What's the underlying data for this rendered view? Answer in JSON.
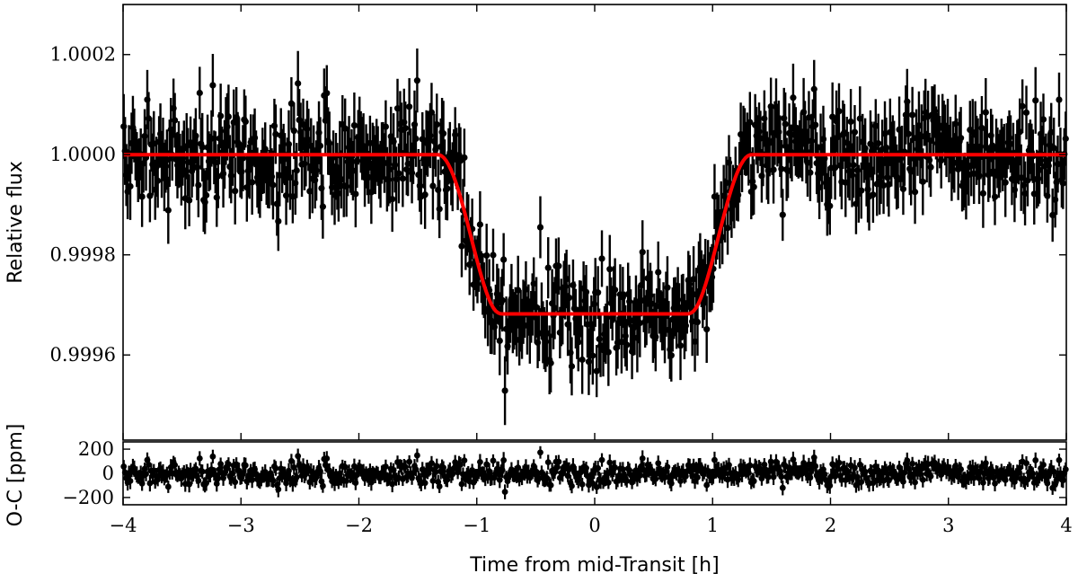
{
  "chart_data": [
    {
      "type": "scatter",
      "panel": "main",
      "ylabel": "Relative flux",
      "xlim": [
        -4,
        4
      ],
      "ylim": [
        0.99943,
        1.0003
      ],
      "yticks": [
        {
          "value": 0.9996,
          "label": "0.9996"
        },
        {
          "value": 0.9998,
          "label": "0.9998"
        },
        {
          "value": 1.0,
          "label": "1.0000"
        },
        {
          "value": 1.0002,
          "label": "1.0002"
        }
      ],
      "grid": false,
      "series": [
        {
          "kind": "errorbar_points",
          "color": "#000000",
          "n_points": 720,
          "noise_sigma": 5e-05,
          "typical_error": 6e-05
        },
        {
          "kind": "model_line",
          "color": "#ff0000",
          "baseline": 1.0,
          "depth": 0.000305,
          "t_ingress_start": -1.33,
          "t_ingress_end": -0.82,
          "t_egress_start": 0.82,
          "t_egress_end": 1.33,
          "limb_darkening_u": 0.5
        }
      ]
    },
    {
      "type": "scatter",
      "panel": "residuals",
      "xlabel": "Time from mid-Transit [h]",
      "ylabel": "O-C [ppm]",
      "xlim": [
        -4,
        4
      ],
      "ylim": [
        -260,
        260
      ],
      "xticks": [
        {
          "value": -4,
          "label": "−4"
        },
        {
          "value": -3,
          "label": "−3"
        },
        {
          "value": -2,
          "label": "−2"
        },
        {
          "value": -1,
          "label": "−1"
        },
        {
          "value": 0,
          "label": "0"
        },
        {
          "value": 1,
          "label": "1"
        },
        {
          "value": 2,
          "label": "2"
        },
        {
          "value": 3,
          "label": "3"
        },
        {
          "value": 4,
          "label": "4"
        }
      ],
      "yticks": [
        {
          "value": -200,
          "label": "−200"
        },
        {
          "value": 0,
          "label": "0"
        },
        {
          "value": 200,
          "label": "200"
        }
      ],
      "zero_line": true,
      "series": [
        {
          "kind": "errorbar_points",
          "color": "#000000",
          "noise_sigma": 50,
          "typical_error": 60
        }
      ]
    }
  ]
}
